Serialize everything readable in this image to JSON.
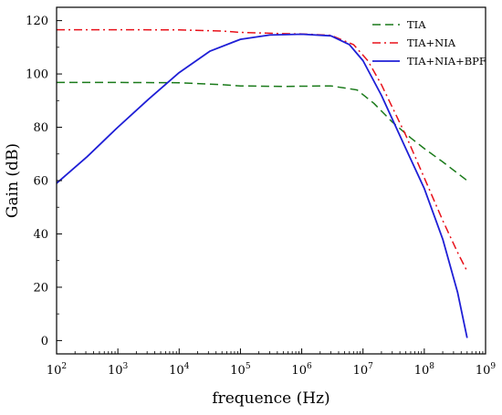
{
  "chart_data": {
    "type": "line",
    "xlabel": "frequence (Hz)",
    "ylabel": "Gain (dB)",
    "xscale": "log",
    "xlim": [
      100,
      1000000000
    ],
    "ylim": [
      -5,
      125
    ],
    "xticks": [
      {
        "value": 100,
        "base": "10",
        "exp": "2"
      },
      {
        "value": 1000,
        "base": "10",
        "exp": "3"
      },
      {
        "value": 10000,
        "base": "10",
        "exp": "4"
      },
      {
        "value": 100000,
        "base": "10",
        "exp": "5"
      },
      {
        "value": 1000000,
        "base": "10",
        "exp": "6"
      },
      {
        "value": 10000000,
        "base": "10",
        "exp": "7"
      },
      {
        "value": 100000000,
        "base": "10",
        "exp": "8"
      },
      {
        "value": 1000000000,
        "base": "10",
        "exp": "9"
      }
    ],
    "yticks": [
      "0",
      "20",
      "40",
      "60",
      "80",
      "100",
      "120"
    ],
    "grid": false,
    "legend_position": "top-right",
    "series": [
      {
        "name": "TIA",
        "color": "#1a7a1a",
        "style": "dashed",
        "x": [
          100,
          1000,
          10000,
          50000,
          100000,
          500000,
          1000000,
          3000000,
          8000000,
          15000000,
          30000000,
          60000000,
          100000000,
          200000000,
          500000000
        ],
        "y": [
          96.8,
          96.8,
          96.7,
          96,
          95.5,
          95.3,
          95.4,
          95.5,
          94,
          89,
          82,
          76,
          72,
          67,
          60
        ]
      },
      {
        "name": "TIA+NIA",
        "color": "#e8111a",
        "style": "dashdot",
        "x": [
          100,
          1000,
          10000,
          50000,
          100000,
          500000,
          1000000,
          3000000,
          7000000,
          12000000,
          20000000,
          50000000,
          100000000,
          200000000,
          350000000,
          500000000
        ],
        "y": [
          116.6,
          116.6,
          116.5,
          116.1,
          115.6,
          115.1,
          115,
          114.5,
          111,
          105,
          96,
          77,
          61,
          45,
          33,
          26
        ]
      },
      {
        "name": "TIA+NIA+BPF",
        "color": "#1f1fd6",
        "style": "solid",
        "x": [
          100,
          316,
          1000,
          3162,
          10000,
          31600,
          100000,
          300000,
          1000000,
          3000000,
          6000000,
          10000000,
          20000000,
          50000000,
          100000000,
          200000000,
          350000000,
          500000000
        ],
        "y": [
          59,
          69,
          80,
          90.5,
          100.5,
          108.5,
          113,
          114.6,
          114.9,
          114.3,
          111,
          105,
          92,
          72,
          57,
          38,
          18,
          1
        ]
      }
    ]
  }
}
